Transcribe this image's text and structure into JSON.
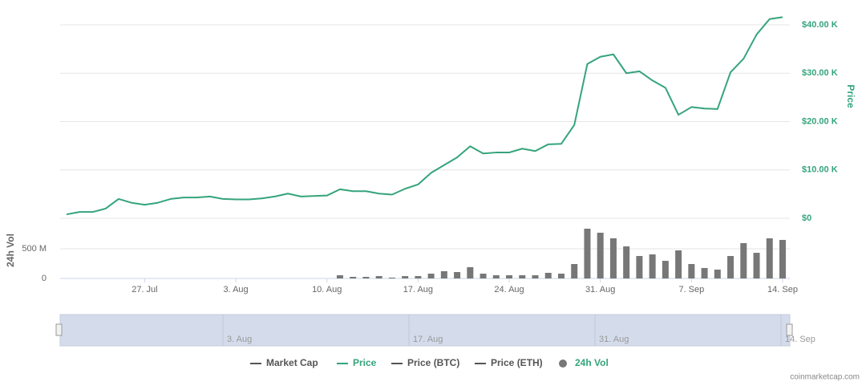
{
  "chart_data": {
    "type": "line",
    "categories": [
      null,
      null,
      null,
      null,
      null,
      null,
      "27. Jul",
      null,
      null,
      null,
      null,
      null,
      null,
      "3. Aug",
      null,
      null,
      null,
      null,
      null,
      null,
      "10. Aug",
      null,
      null,
      null,
      null,
      null,
      null,
      "17. Aug",
      null,
      null,
      null,
      null,
      null,
      null,
      "24. Aug",
      null,
      null,
      null,
      null,
      null,
      null,
      "31. Aug",
      null,
      null,
      null,
      null,
      null,
      null,
      "7. Sep",
      null,
      null,
      null,
      null,
      null,
      null,
      "14. Sep"
    ],
    "series": [
      {
        "name": "Price",
        "color": "#35a47b",
        "axis": "y",
        "values": [
          0.8,
          1.3,
          1.3,
          2.0,
          4.0,
          3.2,
          2.8,
          3.2,
          4.0,
          4.3,
          4.3,
          4.5,
          4.0,
          3.9,
          3.9,
          4.1,
          4.5,
          5.1,
          4.5,
          4.6,
          4.7,
          6.0,
          5.6,
          5.6,
          5.1,
          4.9,
          6.1,
          7.0,
          9.4,
          11.0,
          12.6,
          14.9,
          13.4,
          13.6,
          13.6,
          14.4,
          13.9,
          15.3,
          15.4,
          19.3,
          31.9,
          33.4,
          33.9,
          30.0,
          30.4,
          28.5,
          27.0,
          21.4,
          23.0,
          22.7,
          22.6,
          30.2,
          33.0,
          38.0,
          41.2,
          41.6
        ]
      },
      {
        "name": "24h Vol",
        "color": "#777777",
        "axis": "y2",
        "type": "bar",
        "values": [
          0,
          0,
          0,
          0,
          0,
          0,
          0,
          0,
          0,
          0,
          0,
          0,
          0,
          0,
          0,
          0,
          0,
          0,
          0,
          0,
          0,
          54,
          27,
          27,
          40,
          14,
          40,
          40,
          81,
          122,
          108,
          190,
          81,
          54,
          54,
          54,
          54,
          95,
          81,
          243,
          838,
          770,
          676,
          540,
          378,
          405,
          297,
          473,
          243,
          176,
          149,
          378,
          595,
          432,
          676,
          649
        ]
      }
    ],
    "other_legend_items": [
      {
        "name": "Market Cap",
        "color": "#555555"
      },
      {
        "name": "Price (BTC)",
        "color": "#555555"
      },
      {
        "name": "Price (ETH)",
        "color": "#555555"
      }
    ],
    "ylabel": "Price",
    "y2label": "24h Vol",
    "ylim": [
      0,
      40
    ],
    "yticks": [
      {
        "value": 0,
        "label": "$0"
      },
      {
        "value": 10,
        "label": "$10.00 K"
      },
      {
        "value": 20,
        "label": "$20.00 K"
      },
      {
        "value": 30,
        "label": "$30.00 K"
      },
      {
        "value": 40,
        "label": "$40.00 K"
      }
    ],
    "y2lim": [
      0,
      1000
    ],
    "y2ticks": [
      0,
      {
        "value": 500,
        "label": "500 M"
      }
    ],
    "grid": true,
    "navigator_labels": [
      "3. Aug",
      "17. Aug",
      "31. Aug",
      "14. Sep"
    ],
    "watermark": "coinmarketcap.com"
  }
}
